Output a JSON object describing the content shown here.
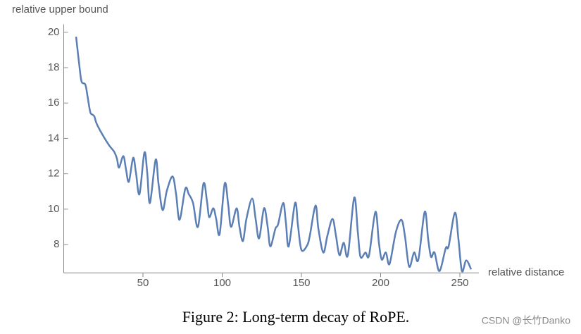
{
  "chart_data": {
    "type": "line",
    "y_label": "relative upper bound",
    "x_label": "relative distance",
    "caption": "Figure 2: Long-term decay of RoPE.",
    "watermark": "CSDN @长竹Danko",
    "xlim": [
      0,
      262
    ],
    "ylim": [
      6.4,
      20.45
    ],
    "xticks": [
      50,
      100,
      150,
      200,
      250
    ],
    "yticks": [
      8,
      10,
      12,
      14,
      16,
      18,
      20
    ],
    "series": [
      {
        "color": "#5b7fb5",
        "x": [
          7.8,
          10,
          11.3,
          13.6,
          14.9,
          16.7,
          18,
          19.3,
          20.7,
          24.2,
          28.7,
          31.8,
          33.6,
          34.9,
          37.6,
          39.3,
          41.1,
          43.8,
          45.6,
          47.8,
          50.9,
          52.7,
          54.4,
          58,
          59.8,
          62.4,
          65.1,
          68.7,
          70.9,
          73.1,
          76.7,
          78.9,
          81.6,
          84.7,
          88.2,
          90.4,
          91.8,
          94.4,
          96.2,
          98.4,
          101.6,
          103.8,
          105.6,
          109.1,
          110.9,
          113.1,
          115.3,
          118.9,
          121.1,
          123.3,
          126.4,
          128.7,
          130.4,
          133.6,
          135.3,
          138.5,
          140.2,
          142,
          146,
          147.8,
          150,
          153.6,
          155.3,
          158.9,
          160.7,
          163.8,
          166.4,
          169.6,
          171.8,
          174,
          176.7,
          179.3,
          183.3,
          185.6,
          187.3,
          190.4,
          192.7,
          196.7,
          198.9,
          200.7,
          203.3,
          205.6,
          209.6,
          213.1,
          215.3,
          218,
          221.1,
          223.8,
          227.8,
          230,
          231.8,
          234,
          237.1,
          241.1,
          242.9,
          246.9,
          249.1,
          251.3,
          254,
          257.1
        ],
        "values": [
          19.75,
          18.0,
          17.2,
          17.05,
          16.45,
          15.5,
          15.35,
          15.25,
          14.85,
          14.25,
          13.6,
          13.25,
          12.85,
          12.35,
          13.0,
          12.25,
          11.55,
          12.9,
          12.05,
          10.85,
          13.2,
          12.05,
          10.35,
          12.8,
          11.45,
          9.95,
          11.05,
          11.85,
          10.85,
          9.4,
          11.15,
          10.85,
          10.35,
          9.0,
          11.45,
          10.45,
          9.55,
          10.05,
          9.45,
          8.6,
          11.45,
          10.25,
          9.0,
          10.05,
          9.0,
          8.2,
          9.45,
          10.6,
          9.45,
          8.35,
          10.05,
          9.0,
          7.9,
          8.9,
          9.15,
          10.35,
          9.25,
          7.9,
          10.35,
          9.1,
          7.7,
          7.95,
          8.5,
          10.2,
          8.9,
          7.55,
          8.5,
          9.45,
          8.5,
          7.4,
          8.1,
          7.4,
          10.65,
          8.7,
          7.3,
          7.55,
          7.4,
          9.85,
          8.1,
          7.15,
          7.55,
          6.9,
          8.7,
          9.4,
          8.5,
          6.75,
          7.55,
          7.15,
          9.85,
          8.3,
          7.3,
          7.55,
          6.5,
          7.8,
          7.9,
          9.8,
          8.3,
          6.5,
          7.1,
          6.6
        ]
      }
    ]
  }
}
